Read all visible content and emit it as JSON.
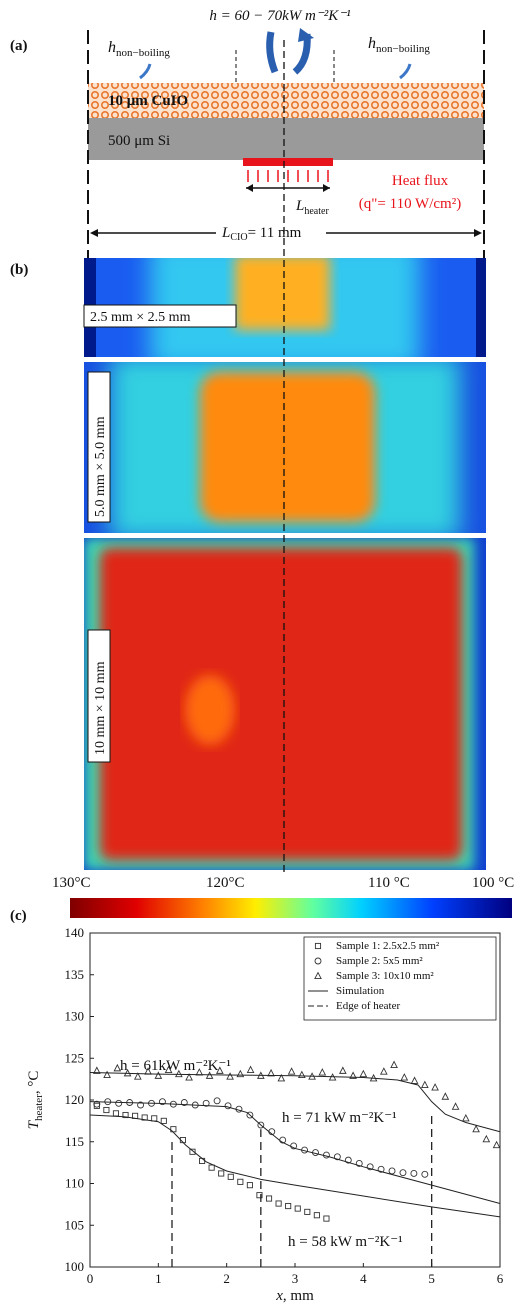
{
  "panel_a": {
    "label": "(a)",
    "title": "h =  60 − 70kW m⁻²K⁻¹",
    "h_left": {
      "symbol": "h",
      "subscript": "non−boiling"
    },
    "h_right": {
      "symbol": "h",
      "subscript": "non−boiling"
    },
    "layer_top": "10 μm CuIO",
    "layer_bottom": "500 μm Si",
    "heater_length": {
      "symbol": "L",
      "subscript": "heater"
    },
    "heat_flux": "Heat flux",
    "heat_flux_value": "(q\"= 110 W/cm²)",
    "cio_length": {
      "symbol": "L",
      "subscript": "CIO",
      "value": "= 11 mm"
    }
  },
  "panel_b": {
    "label": "(b)",
    "image_labels": [
      "2.5 mm × 2.5 mm",
      "5.0 mm × 5.0 mm",
      "10 mm × 10 mm"
    ],
    "colorbar_labels": [
      "130°C",
      "120°C",
      "110 °C",
      "100 °C"
    ]
  },
  "chart_data": {
    "type": "scatter",
    "label": "(c)",
    "x_label": {
      "symbol": "x",
      "unit": ", mm"
    },
    "y_label": {
      "symbol": "T",
      "subscript": "heater",
      "unit": ", °C"
    },
    "xlim": [
      0,
      6
    ],
    "ylim": [
      100,
      140
    ],
    "xticks": [
      0,
      1,
      2,
      3,
      4,
      5,
      6
    ],
    "yticks": [
      100,
      105,
      110,
      115,
      120,
      125,
      130,
      135,
      140
    ],
    "legend": "upper right",
    "annotations": [
      "h = 61kW m⁻²K⁻¹",
      "h = 71 kW m⁻²K⁻¹",
      "h = 58 kW m⁻²K⁻¹"
    ],
    "series": [
      {
        "name": "Sample 1: 2.5x2.5 mm²",
        "marker": "square",
        "color": "#333333",
        "x": [
          0.1,
          0.24,
          0.38,
          0.52,
          0.66,
          0.8,
          0.94,
          1.08,
          1.22,
          1.36,
          1.5,
          1.64,
          1.78,
          1.92,
          2.06,
          2.2,
          2.34,
          2.48,
          2.62,
          2.76,
          2.9,
          3.04,
          3.18,
          3.32,
          3.46
        ],
        "values": [
          119.3,
          118.8,
          118.4,
          118.2,
          118.1,
          117.9,
          117.8,
          117.5,
          116.5,
          115.2,
          113.8,
          112.7,
          111.9,
          111.2,
          110.8,
          110.2,
          109.8,
          108.6,
          108.2,
          107.6,
          107.3,
          107.0,
          106.6,
          106.2,
          105.8
        ]
      },
      {
        "name": "Sample 2: 5x5 mm²",
        "marker": "circle",
        "color": "#333333",
        "x": [
          0.1,
          0.26,
          0.42,
          0.58,
          0.74,
          0.9,
          1.06,
          1.22,
          1.38,
          1.54,
          1.7,
          1.86,
          2.02,
          2.18,
          2.34,
          2.5,
          2.66,
          2.82,
          2.98,
          3.14,
          3.3,
          3.46,
          3.62,
          3.78,
          3.94,
          4.1,
          4.26,
          4.42,
          4.58,
          4.74,
          4.9
        ],
        "values": [
          119.5,
          119.8,
          119.6,
          119.7,
          119.4,
          119.6,
          119.8,
          119.5,
          119.7,
          119.4,
          119.6,
          119.9,
          119.3,
          118.9,
          118.2,
          117.0,
          116.2,
          115.2,
          114.5,
          114.0,
          113.7,
          113.4,
          113.2,
          112.8,
          112.4,
          112.0,
          111.7,
          111.5,
          111.3,
          111.2,
          111.1
        ]
      },
      {
        "name": "Sample 3: 10x10 mm²",
        "marker": "triangle",
        "color": "#333333",
        "x": [
          0.1,
          0.25,
          0.4,
          0.55,
          0.7,
          0.85,
          1.0,
          1.15,
          1.3,
          1.45,
          1.6,
          1.75,
          1.9,
          2.05,
          2.2,
          2.35,
          2.5,
          2.65,
          2.8,
          2.95,
          3.1,
          3.25,
          3.4,
          3.55,
          3.7,
          3.85,
          4.0,
          4.15,
          4.3,
          4.45,
          4.6,
          4.75,
          4.9,
          5.05,
          5.2,
          5.35,
          5.5,
          5.65,
          5.8,
          5.95
        ],
        "values": [
          123.5,
          123.0,
          123.8,
          123.2,
          122.8,
          123.4,
          122.9,
          123.6,
          123.1,
          122.7,
          123.3,
          122.9,
          123.5,
          122.8,
          123.1,
          123.6,
          122.9,
          123.2,
          122.6,
          123.4,
          123.0,
          122.8,
          123.3,
          122.7,
          123.5,
          122.9,
          123.1,
          122.6,
          123.4,
          124.2,
          122.7,
          122.3,
          121.8,
          121.5,
          120.4,
          119.2,
          117.8,
          116.5,
          115.3,
          114.6
        ]
      },
      {
        "name": "Simulation",
        "style": "solid",
        "color": "#222222",
        "curves": [
          {
            "x": [
              0,
              0.5,
              1.0,
              1.2,
              1.4,
              1.7,
              2.0,
              2.5,
              3,
              4,
              5,
              6
            ],
            "values": [
              118.2,
              118.0,
              117.4,
              116.3,
              114.6,
              112.6,
              111.5,
              110.5,
              109.8,
              108.5,
              107.2,
              106.0
            ]
          },
          {
            "x": [
              0,
              1,
              2,
              2.3,
              2.5,
              2.8,
              3.0,
              3.5,
              4,
              5,
              6
            ],
            "values": [
              119.8,
              119.6,
              119.2,
              118.5,
              117.0,
              115.0,
              114.2,
              113.2,
              112.0,
              109.8,
              107.6
            ]
          },
          {
            "x": [
              0,
              1,
              2,
              3,
              4,
              4.5,
              4.8,
              5.0,
              5.2,
              5.5,
              6
            ],
            "values": [
              123.3,
              123.1,
              123.0,
              122.9,
              122.7,
              122.4,
              121.8,
              119.8,
              118.3,
              117.3,
              116.2
            ]
          }
        ]
      },
      {
        "name": "Edge of heater",
        "style": "dashed",
        "color": "#222222",
        "x": [
          1.2,
          2.5,
          5.0
        ],
        "values": [
          115.5,
          116.5,
          118.5
        ]
      }
    ]
  }
}
